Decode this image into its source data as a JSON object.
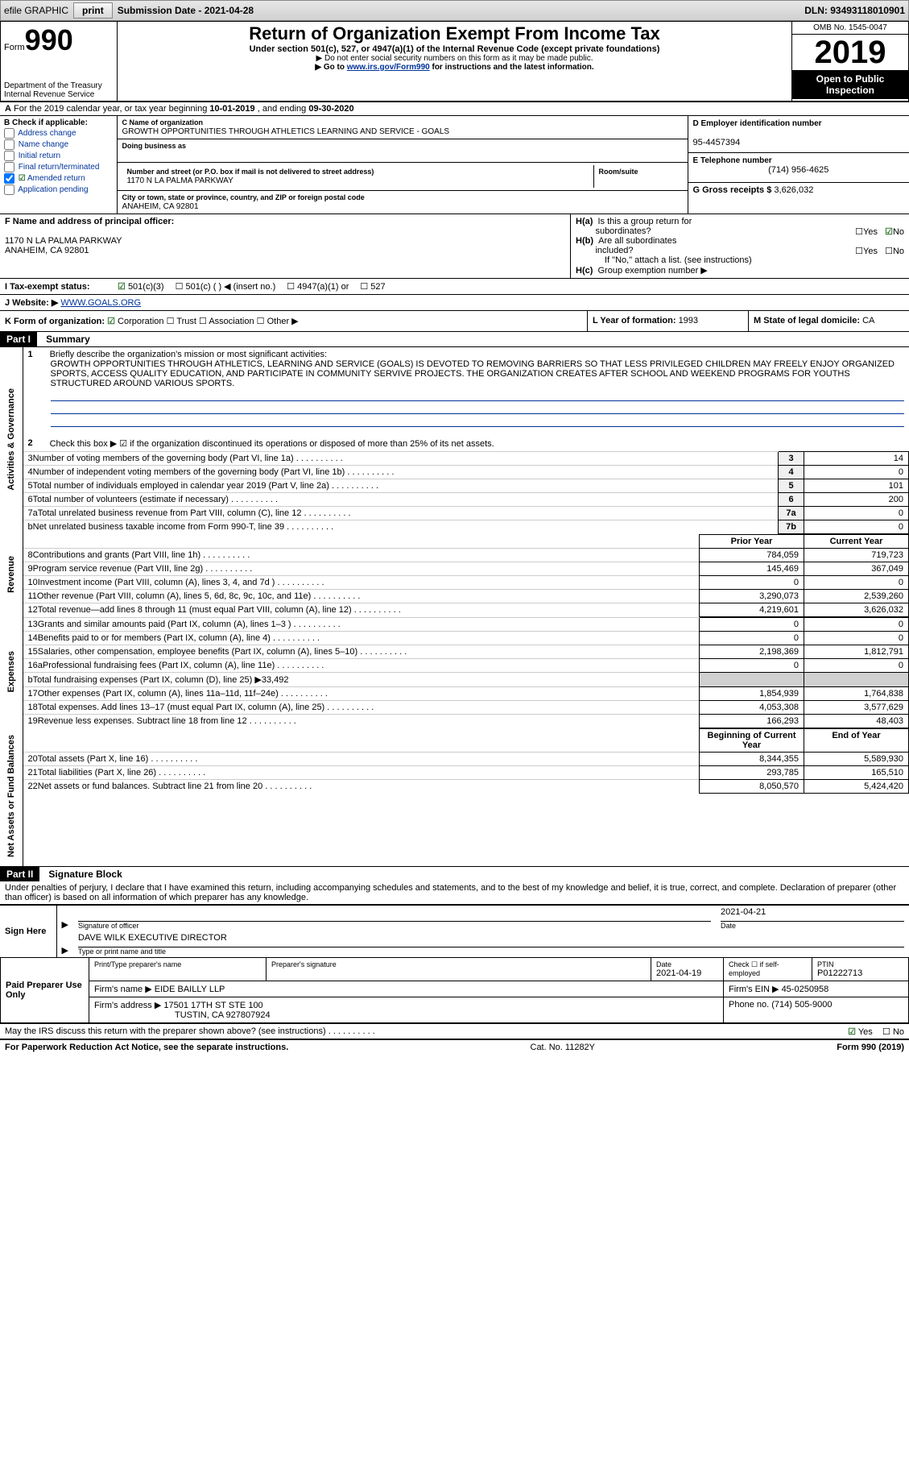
{
  "topbar": {
    "efile_label": "efile GRAPHIC",
    "print_btn": "print",
    "submission_label": "Submission Date - 2021-04-28",
    "dln": "DLN: 93493118010901"
  },
  "header": {
    "form_prefix": "Form",
    "form_number": "990",
    "dept1": "Department of the Treasury",
    "dept2": "Internal Revenue Service",
    "title": "Return of Organization Exempt From Income Tax",
    "subtitle": "Under section 501(c), 527, or 4947(a)(1) of the Internal Revenue Code (except private foundations)",
    "note1": "▶ Do not enter social security numbers on this form as it may be made public.",
    "note2_pre": "▶ Go to ",
    "note2_link": "www.irs.gov/Form990",
    "note2_post": " for instructions and the latest information.",
    "omb": "OMB No. 1545-0047",
    "year": "2019",
    "inspect1": "Open to Public",
    "inspect2": "Inspection"
  },
  "line_a": {
    "label_a": "A",
    "text": "For the 2019 calendar year, or tax year beginning ",
    "begin": "10-01-2019",
    "mid": " , and ending ",
    "end": "09-30-2020"
  },
  "section_b": {
    "label": "B Check if applicable:",
    "addr_change": "Address change",
    "name_change": "Name change",
    "initial": "Initial return",
    "final": "Final return/terminated",
    "amended": "Amended return",
    "app_pending": "Application pending"
  },
  "section_c": {
    "label": "C Name of organization",
    "name": "GROWTH OPPORTUNITIES THROUGH ATHLETICS LEARNING AND SERVICE - GOALS",
    "dba_label": "Doing business as",
    "dba": "",
    "street_label": "Number and street (or P.O. box if mail is not delivered to street address)",
    "room_label": "Room/suite",
    "street": "1170 N LA PALMA PARKWAY",
    "city_label": "City or town, state or province, country, and ZIP or foreign postal code",
    "city": "ANAHEIM, CA  92801"
  },
  "section_d": {
    "label": "D Employer identification number",
    "ein": "95-4457394",
    "e_label": "E Telephone number",
    "phone": "(714) 956-4625",
    "g_label": "G Gross receipts $ ",
    "gross": "3,626,032"
  },
  "section_f": {
    "label": "F Name and address of principal officer:",
    "addr1": "1170 N LA PALMA PARKWAY",
    "addr2": "ANAHEIM, CA  92801"
  },
  "section_h": {
    "ha_label": "H(a)  Is this a group return for subordinates?",
    "hb_label": "H(b)  Are all subordinates included?",
    "h_note": "If \"No,\" attach a list. (see instructions)",
    "hc_label": "H(c)  Group exemption number ▶",
    "yes": "Yes",
    "no": "No"
  },
  "section_i": {
    "label": "I   Tax-exempt status:",
    "c3": "501(c)(3)",
    "c": "501(c) (  ) ◀ (insert no.)",
    "a1": "4947(a)(1) or",
    "s527": "527"
  },
  "section_j": {
    "label": "J   Website: ▶",
    "url": "WWW.GOALS.ORG"
  },
  "section_k": {
    "label": "K Form of organization:",
    "corp": "Corporation",
    "trust": "Trust",
    "assoc": "Association",
    "other": "Other ▶"
  },
  "section_l": {
    "label": "L Year of formation: ",
    "val": "1993"
  },
  "section_m": {
    "label": "M State of legal domicile: ",
    "val": "CA"
  },
  "part1": {
    "hdr": "Part I",
    "title": "Summary",
    "q1_num": "1",
    "q1": "Briefly describe the organization's mission or most significant activities:",
    "mission": "GROWTH OPPORTUNITIES THROUGH ATHLETICS, LEARNING AND SERVICE (GOALS) IS DEVOTED TO REMOVING BARRIERS SO THAT LESS PRIVILEGED CHILDREN MAY FREELY ENJOY ORGANIZED SPORTS, ACCESS QUALITY EDUCATION, AND PARTICIPATE IN COMMUNITY SERVIVE PROJECTS. THE ORGANIZATION CREATES AFTER SCHOOL AND WEEKEND PROGRAMS FOR YOUTHS STRUCTURED AROUND VARIOUS SPORTS.",
    "q2_num": "2",
    "q2": "Check this box ▶ ☑ if the organization discontinued its operations or disposed of more than 25% of its net assets.",
    "vlabel_ag": "Activities & Governance",
    "vlabel_rev": "Revenue",
    "vlabel_exp": "Expenses",
    "vlabel_na": "Net Assets or Fund Balances",
    "rows_ag": [
      {
        "n": "3",
        "t": "Number of voting members of the governing body (Part VI, line 1a)",
        "rn": "3",
        "v": "14"
      },
      {
        "n": "4",
        "t": "Number of independent voting members of the governing body (Part VI, line 1b)",
        "rn": "4",
        "v": "0"
      },
      {
        "n": "5",
        "t": "Total number of individuals employed in calendar year 2019 (Part V, line 2a)",
        "rn": "5",
        "v": "101"
      },
      {
        "n": "6",
        "t": "Total number of volunteers (estimate if necessary)",
        "rn": "6",
        "v": "200"
      },
      {
        "n": "7a",
        "t": "Total unrelated business revenue from Part VIII, column (C), line 12",
        "rn": "7a",
        "v": "0"
      },
      {
        "n": "b",
        "t": "Net unrelated business taxable income from Form 990-T, line 39",
        "rn": "7b",
        "v": "0"
      }
    ],
    "hdr_prior": "Prior Year",
    "hdr_current": "Current Year",
    "rows_rev": [
      {
        "n": "8",
        "t": "Contributions and grants (Part VIII, line 1h)",
        "p": "784,059",
        "c": "719,723"
      },
      {
        "n": "9",
        "t": "Program service revenue (Part VIII, line 2g)",
        "p": "145,469",
        "c": "367,049"
      },
      {
        "n": "10",
        "t": "Investment income (Part VIII, column (A), lines 3, 4, and 7d )",
        "p": "0",
        "c": "0"
      },
      {
        "n": "11",
        "t": "Other revenue (Part VIII, column (A), lines 5, 6d, 8c, 9c, 10c, and 11e)",
        "p": "3,290,073",
        "c": "2,539,260"
      },
      {
        "n": "12",
        "t": "Total revenue—add lines 8 through 11 (must equal Part VIII, column (A), line 12)",
        "p": "4,219,601",
        "c": "3,626,032"
      }
    ],
    "rows_exp": [
      {
        "n": "13",
        "t": "Grants and similar amounts paid (Part IX, column (A), lines 1–3 )",
        "p": "0",
        "c": "0"
      },
      {
        "n": "14",
        "t": "Benefits paid to or for members (Part IX, column (A), line 4)",
        "p": "0",
        "c": "0"
      },
      {
        "n": "15",
        "t": "Salaries, other compensation, employee benefits (Part IX, column (A), lines 5–10)",
        "p": "2,198,369",
        "c": "1,812,791"
      },
      {
        "n": "16a",
        "t": "Professional fundraising fees (Part IX, column (A), line 11e)",
        "p": "0",
        "c": "0"
      },
      {
        "n": "b",
        "t": "Total fundraising expenses (Part IX, column (D), line 25) ▶33,492",
        "shade": true
      },
      {
        "n": "17",
        "t": "Other expenses (Part IX, column (A), lines 11a–11d, 11f–24e)",
        "p": "1,854,939",
        "c": "1,764,838"
      },
      {
        "n": "18",
        "t": "Total expenses. Add lines 13–17 (must equal Part IX, column (A), line 25)",
        "p": "4,053,308",
        "c": "3,577,629"
      },
      {
        "n": "19",
        "t": "Revenue less expenses. Subtract line 18 from line 12",
        "p": "166,293",
        "c": "48,403"
      }
    ],
    "hdr_begin": "Beginning of Current Year",
    "hdr_end": "End of Year",
    "rows_na": [
      {
        "n": "20",
        "t": "Total assets (Part X, line 16)",
        "p": "8,344,355",
        "c": "5,589,930"
      },
      {
        "n": "21",
        "t": "Total liabilities (Part X, line 26)",
        "p": "293,785",
        "c": "165,510"
      },
      {
        "n": "22",
        "t": "Net assets or fund balances. Subtract line 21 from line 20",
        "p": "8,050,570",
        "c": "5,424,420"
      }
    ]
  },
  "part2": {
    "hdr": "Part II",
    "title": "Signature Block",
    "declaration": "Under penalties of perjury, I declare that I have examined this return, including accompanying schedules and statements, and to the best of my knowledge and belief, it is true, correct, and complete. Declaration of preparer (other than officer) is based on all information of which preparer has any knowledge.",
    "sign_here": "Sign Here",
    "sig_officer": "Signature of officer",
    "sig_date": "2021-04-21",
    "date_lbl": "Date",
    "officer_name": "DAVE WILK  EXECUTIVE DIRECTOR",
    "name_lbl": "Type or print name and title",
    "paid": "Paid Preparer Use Only",
    "prep_name_lbl": "Print/Type preparer's name",
    "prep_sig_lbl": "Preparer's signature",
    "prep_date_lbl": "Date",
    "prep_date": "2021-04-19",
    "check_self": "Check ☐ if self-employed",
    "ptin_lbl": "PTIN",
    "ptin": "P01222713",
    "firm_name_lbl": "Firm's name    ▶",
    "firm_name": "EIDE BAILLY LLP",
    "firm_ein_lbl": "Firm's EIN ▶",
    "firm_ein": "45-0250958",
    "firm_addr_lbl": "Firm's address ▶",
    "firm_addr1": "17501 17TH ST STE 100",
    "firm_addr2": "TUSTIN, CA  927807924",
    "phone_lbl": "Phone no. ",
    "phone": "(714) 505-9000",
    "discuss": "May the IRS discuss this return with the preparer shown above? (see instructions)",
    "yes": "Yes",
    "no": "No"
  },
  "footer": {
    "left": "For Paperwork Reduction Act Notice, see the separate instructions.",
    "mid": "Cat. No. 11282Y",
    "right": "Form 990 (2019)"
  },
  "colors": {
    "link": "#003399",
    "check_green": "#3a7a3a"
  }
}
